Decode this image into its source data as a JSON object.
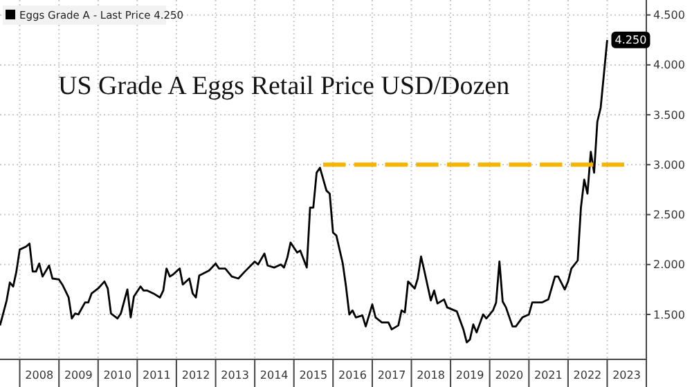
{
  "chart_data": {
    "type": "line",
    "title": "US Grade A Eggs Retail Price USD/Dozen",
    "legend": "top left",
    "grid": true,
    "xlim": [
      "2007-07",
      "2024-01"
    ],
    "xticks": [
      {
        "value": "2008-01",
        "label": null
      },
      {
        "value": "2008-07",
        "label": "2008"
      },
      {
        "value": "2009-01",
        "label": null
      },
      {
        "value": "2009-07",
        "label": "2009"
      },
      {
        "value": "2010-01",
        "label": null
      },
      {
        "value": "2010-07",
        "label": "2010"
      },
      {
        "value": "2011-01",
        "label": null
      },
      {
        "value": "2011-07",
        "label": "2011"
      },
      {
        "value": "2012-01",
        "label": null
      },
      {
        "value": "2012-07",
        "label": "2012"
      },
      {
        "value": "2013-01",
        "label": null
      },
      {
        "value": "2013-07",
        "label": "2013"
      },
      {
        "value": "2014-01",
        "label": null
      },
      {
        "value": "2014-07",
        "label": "2014"
      },
      {
        "value": "2015-01",
        "label": null
      },
      {
        "value": "2015-07",
        "label": "2015"
      },
      {
        "value": "2016-01",
        "label": null
      },
      {
        "value": "2016-07",
        "label": "2016"
      },
      {
        "value": "2017-01",
        "label": null
      },
      {
        "value": "2017-07",
        "label": "2017"
      },
      {
        "value": "2018-01",
        "label": null
      },
      {
        "value": "2018-07",
        "label": "2018"
      },
      {
        "value": "2019-01",
        "label": null
      },
      {
        "value": "2019-07",
        "label": "2019"
      },
      {
        "value": "2020-01",
        "label": null
      },
      {
        "value": "2020-07",
        "label": "2020"
      },
      {
        "value": "2021-01",
        "label": null
      },
      {
        "value": "2021-07",
        "label": "2021"
      },
      {
        "value": "2022-01",
        "label": null
      },
      {
        "value": "2022-07",
        "label": "2022"
      },
      {
        "value": "2023-01",
        "label": null
      },
      {
        "value": "2023-07",
        "label": "2023"
      },
      {
        "value": "2024-01",
        "label": null
      }
    ],
    "ylim": [
      1.05,
      4.65
    ],
    "yticks": [
      {
        "value": 1.5,
        "label": "1.500"
      },
      {
        "value": 2,
        "label": "2.000"
      },
      {
        "value": 2.5,
        "label": "2.500"
      },
      {
        "value": 3,
        "label": "3.000"
      },
      {
        "value": 3.5,
        "label": "3.500"
      },
      {
        "value": 4,
        "label": "4.000"
      },
      {
        "value": 4.5,
        "label": "4.500"
      }
    ],
    "annotations": [
      {
        "text": "4.250",
        "x": "2023-01",
        "y": 4.25
      }
    ],
    "series": [
      {
        "name": "Eggs Grade A - Last Price 4.250",
        "color": "#000000",
        "x": [
          "2007-07",
          "2007-09",
          "2007-10",
          "2007-11",
          "2007-12",
          "2008-01",
          "2008-03",
          "2008-04",
          "2008-05",
          "2008-06",
          "2008-07",
          "2008-08",
          "2008-10",
          "2008-11",
          "2009-01",
          "2009-02",
          "2009-03",
          "2009-04",
          "2009-05",
          "2009-06",
          "2009-07",
          "2009-09",
          "2009-10",
          "2009-11",
          "2010-01",
          "2010-03",
          "2010-04",
          "2010-05",
          "2010-07",
          "2010-08",
          "2010-10",
          "2010-11",
          "2010-12",
          "2011-02",
          "2011-03",
          "2011-04",
          "2011-06",
          "2011-08",
          "2011-09",
          "2011-10",
          "2011-11",
          "2011-12",
          "2012-02",
          "2012-03",
          "2012-05",
          "2012-06",
          "2012-07",
          "2012-08",
          "2012-11",
          "2013-01",
          "2013-02",
          "2013-04",
          "2013-06",
          "2013-08",
          "2013-10",
          "2014-01",
          "2014-02",
          "2014-04",
          "2014-05",
          "2014-07",
          "2014-09",
          "2014-10",
          "2014-11",
          "2014-12",
          "2015-02",
          "2015-03",
          "2015-05",
          "2015-06",
          "2015-07",
          "2015-08",
          "2015-09",
          "2015-11",
          "2015-12",
          "2016-01",
          "2016-02",
          "2016-04",
          "2016-05",
          "2016-06",
          "2016-07",
          "2016-08",
          "2016-10",
          "2016-11",
          "2017-01",
          "2017-02",
          "2017-04",
          "2017-06",
          "2017-07",
          "2017-09",
          "2017-10",
          "2017-11",
          "2017-12",
          "2018-02",
          "2018-03",
          "2018-04",
          "2018-05",
          "2018-07",
          "2018-08",
          "2018-09",
          "2018-11",
          "2018-12",
          "2019-03",
          "2019-05",
          "2019-06",
          "2019-07",
          "2019-08",
          "2019-09",
          "2019-11",
          "2019-12",
          "2020-02",
          "2020-03",
          "2020-04",
          "2020-05",
          "2020-06",
          "2020-08",
          "2020-09",
          "2020-11",
          "2021-01",
          "2021-02",
          "2021-05",
          "2021-07",
          "2021-09",
          "2021-10",
          "2021-12",
          "2022-01",
          "2022-02",
          "2022-04",
          "2022-05",
          "2022-06",
          "2022-07",
          "2022-08",
          "2022-09",
          "2022-10",
          "2022-11",
          "2023-01"
        ],
        "values": [
          1.39,
          1.64,
          1.82,
          1.78,
          1.93,
          2.15,
          2.18,
          2.21,
          1.93,
          1.93,
          2.01,
          1.88,
          1.99,
          1.86,
          1.85,
          1.8,
          1.74,
          1.67,
          1.46,
          1.51,
          1.5,
          1.62,
          1.62,
          1.71,
          1.76,
          1.83,
          1.76,
          1.51,
          1.46,
          1.51,
          1.75,
          1.47,
          1.68,
          1.78,
          1.74,
          1.74,
          1.71,
          1.67,
          1.74,
          1.96,
          1.88,
          1.9,
          1.96,
          1.8,
          1.86,
          1.71,
          1.67,
          1.89,
          1.94,
          2.01,
          1.96,
          1.96,
          1.88,
          1.86,
          1.93,
          2.03,
          2,
          2.11,
          1.99,
          1.97,
          2,
          1.97,
          2.07,
          2.22,
          2.12,
          2.14,
          1.97,
          2.57,
          2.57,
          2.92,
          2.97,
          2.74,
          2.71,
          2.32,
          2.29,
          2.01,
          1.78,
          1.5,
          1.54,
          1.47,
          1.49,
          1.38,
          1.6,
          1.47,
          1.42,
          1.42,
          1.35,
          1.39,
          1.54,
          1.52,
          1.83,
          1.76,
          1.86,
          2.08,
          1.94,
          1.64,
          1.74,
          1.61,
          1.65,
          1.57,
          1.53,
          1.35,
          1.22,
          1.25,
          1.4,
          1.32,
          1.5,
          1.46,
          1.54,
          1.62,
          2.03,
          1.63,
          1.57,
          1.38,
          1.38,
          1.47,
          1.5,
          1.62,
          1.62,
          1.65,
          1.88,
          1.88,
          1.75,
          1.83,
          1.96,
          2.04,
          2.57,
          2.85,
          2.71,
          3.13,
          2.92,
          3.43,
          3.57,
          4.25
        ]
      },
      {
        "color": "#f5b400",
        "line_style": "dashed",
        "x": [
          "2015-10",
          "2023-07"
        ],
        "values": [
          3,
          3
        ]
      }
    ]
  }
}
